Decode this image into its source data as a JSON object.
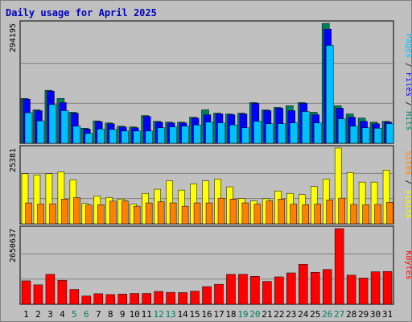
{
  "title": "Daily usage for April 2025",
  "colors": {
    "title": "#0000c0",
    "hits": "#00805c",
    "files": "#0000ff",
    "pages": "#00c0ff",
    "visits": "#ffff00",
    "sites": "#ff8000",
    "kbytes": "#ff0000",
    "weekend_label": "#00805c",
    "panel_bg": "#c0c0c0",
    "grid": "#808080"
  },
  "chart_data": [
    {
      "type": "bar",
      "panel": "hits",
      "axis_max_label": "294195",
      "ylim": [
        0,
        294195
      ],
      "legend": [
        "Pages",
        "Files",
        "Hits"
      ],
      "categories": [
        "1",
        "2",
        "3",
        "4",
        "5",
        "6",
        "7",
        "8",
        "9",
        "10",
        "11",
        "12",
        "13",
        "14",
        "15",
        "16",
        "17",
        "18",
        "19",
        "20",
        "21",
        "22",
        "23",
        "24",
        "25",
        "26",
        "27",
        "28",
        "29",
        "30",
        "31"
      ],
      "weekend_days": [
        "5",
        "6",
        "12",
        "13",
        "19",
        "20",
        "26",
        "27"
      ],
      "series": [
        {
          "name": "Hits",
          "values": [
            110000,
            82000,
            130000,
            110000,
            76000,
            37000,
            55000,
            50000,
            42000,
            40000,
            68000,
            54000,
            52000,
            52000,
            64000,
            82000,
            74000,
            72000,
            74000,
            100000,
            82000,
            88000,
            92000,
            100000,
            76000,
            294000,
            92000,
            72000,
            62000,
            52000,
            54000
          ]
        },
        {
          "name": "Files",
          "values": [
            108000,
            80000,
            128000,
            100000,
            74000,
            35000,
            53000,
            48000,
            40000,
            38000,
            66000,
            52000,
            50000,
            50000,
            62000,
            70000,
            72000,
            70000,
            72000,
            98000,
            80000,
            86000,
            80000,
            98000,
            70000,
            280000,
            86000,
            64000,
            54000,
            48000,
            52000
          ]
        },
        {
          "name": "Pages",
          "values": [
            75000,
            55000,
            95000,
            80000,
            42000,
            24000,
            35000,
            34000,
            30000,
            30000,
            30000,
            38000,
            40000,
            42000,
            45000,
            52000,
            50000,
            45000,
            38000,
            54000,
            48000,
            48000,
            50000,
            78000,
            50000,
            240000,
            60000,
            42000,
            38000,
            37000,
            48000
          ]
        }
      ]
    },
    {
      "type": "bar",
      "panel": "visits",
      "axis_max_label": "25381",
      "ylim": [
        0,
        25381
      ],
      "legend": [
        "Sites",
        "Visits"
      ],
      "categories": [
        "1",
        "2",
        "3",
        "4",
        "5",
        "6",
        "7",
        "8",
        "9",
        "10",
        "11",
        "12",
        "13",
        "14",
        "15",
        "16",
        "17",
        "18",
        "19",
        "20",
        "21",
        "22",
        "23",
        "24",
        "25",
        "26",
        "27",
        "28",
        "29",
        "30",
        "31"
      ],
      "series": [
        {
          "name": "Visits",
          "values": [
            16800,
            16400,
            16800,
            17400,
            14700,
            6800,
            9300,
            8800,
            8300,
            6600,
            10200,
            11600,
            14400,
            11300,
            13400,
            14400,
            15000,
            12400,
            8500,
            7700,
            8400,
            11000,
            10200,
            9800,
            12500,
            15000,
            25400,
            17200,
            14000,
            14000,
            18000
          ]
        },
        {
          "name": "Sites",
          "values": [
            7000,
            6600,
            6700,
            8300,
            8800,
            6300,
            6400,
            7600,
            7700,
            5900,
            7000,
            7400,
            7000,
            5900,
            7000,
            7000,
            8600,
            8300,
            7000,
            6600,
            7700,
            8300,
            6600,
            6400,
            6600,
            8000,
            8600,
            6500,
            6400,
            6500,
            7200
          ]
        }
      ]
    },
    {
      "type": "bar",
      "panel": "kbytes",
      "axis_max_label": "2650637",
      "ylim": [
        0,
        2650637
      ],
      "legend": [
        "KBytes"
      ],
      "categories": [
        "1",
        "2",
        "3",
        "4",
        "5",
        "6",
        "7",
        "8",
        "9",
        "10",
        "11",
        "12",
        "13",
        "14",
        "15",
        "16",
        "17",
        "18",
        "19",
        "20",
        "21",
        "22",
        "23",
        "24",
        "25",
        "26",
        "27",
        "28",
        "29",
        "30",
        "31"
      ],
      "series": [
        {
          "name": "KBytes",
          "values": [
            820000,
            680000,
            1050000,
            840000,
            520000,
            290000,
            370000,
            340000,
            360000,
            380000,
            380000,
            450000,
            420000,
            410000,
            460000,
            620000,
            700000,
            1050000,
            1050000,
            980000,
            800000,
            960000,
            1100000,
            1400000,
            1120000,
            1220000,
            2650000,
            1020000,
            920000,
            1140000,
            1150000
          ]
        }
      ]
    }
  ]
}
